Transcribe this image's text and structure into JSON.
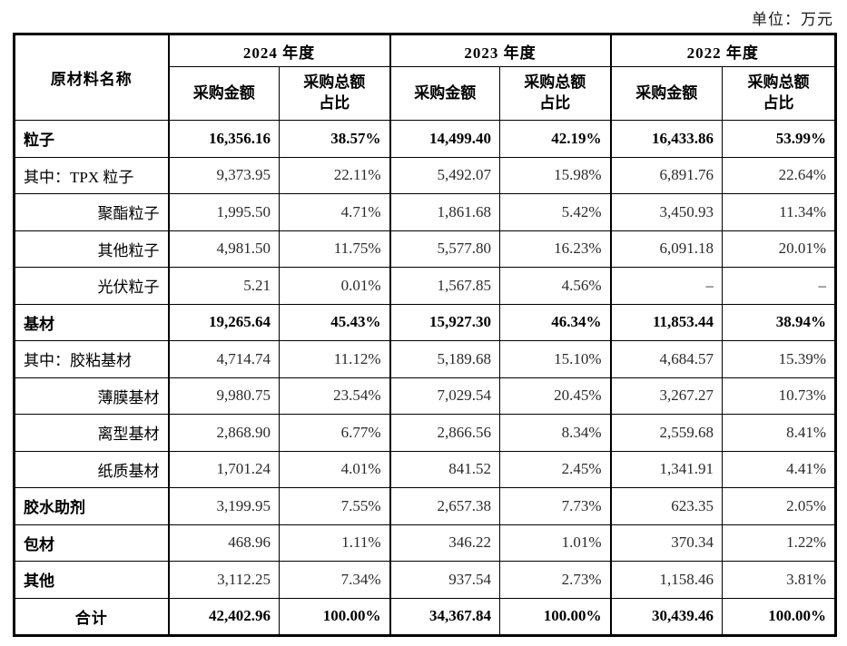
{
  "unit_label": "单位：万元",
  "table": {
    "name_header": "原材料名称",
    "year_groups": [
      {
        "label": "2024 年度"
      },
      {
        "label": "2023 年度"
      },
      {
        "label": "2022 年度"
      }
    ],
    "sub_headers": {
      "amount": "采购金额",
      "ratio": "采购总额\n占比"
    },
    "rows": [
      {
        "name": "粒子",
        "name_style": "left-bold",
        "values_bold": true,
        "values": [
          "16,356.16",
          "38.57%",
          "14,499.40",
          "42.19%",
          "16,433.86",
          "53.99%"
        ]
      },
      {
        "name": "其中：TPX 粒子",
        "name_style": "left",
        "values_bold": false,
        "values": [
          "9,373.95",
          "22.11%",
          "5,492.07",
          "15.98%",
          "6,891.76",
          "22.64%"
        ]
      },
      {
        "name": "聚酯粒子",
        "name_style": "right",
        "values_bold": false,
        "values": [
          "1,995.50",
          "4.71%",
          "1,861.68",
          "5.42%",
          "3,450.93",
          "11.34%"
        ]
      },
      {
        "name": "其他粒子",
        "name_style": "right",
        "values_bold": false,
        "values": [
          "4,981.50",
          "11.75%",
          "5,577.80",
          "16.23%",
          "6,091.18",
          "20.01%"
        ]
      },
      {
        "name": "光伏粒子",
        "name_style": "right",
        "values_bold": false,
        "values": [
          "5.21",
          "0.01%",
          "1,567.85",
          "4.56%",
          "–",
          "–"
        ]
      },
      {
        "name": "基材",
        "name_style": "left-bold",
        "values_bold": true,
        "values": [
          "19,265.64",
          "45.43%",
          "15,927.30",
          "46.34%",
          "11,853.44",
          "38.94%"
        ]
      },
      {
        "name": "其中：胶粘基材",
        "name_style": "left",
        "values_bold": false,
        "values": [
          "4,714.74",
          "11.12%",
          "5,189.68",
          "15.10%",
          "4,684.57",
          "15.39%"
        ]
      },
      {
        "name": "薄膜基材",
        "name_style": "right",
        "values_bold": false,
        "values": [
          "9,980.75",
          "23.54%",
          "7,029.54",
          "20.45%",
          "3,267.27",
          "10.73%"
        ]
      },
      {
        "name": "离型基材",
        "name_style": "right",
        "values_bold": false,
        "values": [
          "2,868.90",
          "6.77%",
          "2,866.56",
          "8.34%",
          "2,559.68",
          "8.41%"
        ]
      },
      {
        "name": "纸质基材",
        "name_style": "right",
        "values_bold": false,
        "values": [
          "1,701.24",
          "4.01%",
          "841.52",
          "2.45%",
          "1,341.91",
          "4.41%"
        ]
      },
      {
        "name": "胶水助剂",
        "name_style": "left-bold",
        "values_bold": false,
        "values": [
          "3,199.95",
          "7.55%",
          "2,657.38",
          "7.73%",
          "623.35",
          "2.05%"
        ]
      },
      {
        "name": "包材",
        "name_style": "left-bold",
        "values_bold": false,
        "values": [
          "468.96",
          "1.11%",
          "346.22",
          "1.01%",
          "370.34",
          "1.22%"
        ]
      },
      {
        "name": "其他",
        "name_style": "left-bold",
        "values_bold": false,
        "values": [
          "3,112.25",
          "7.34%",
          "937.54",
          "2.73%",
          "1,158.46",
          "3.81%"
        ]
      },
      {
        "name": "合计",
        "name_style": "center-bold",
        "values_bold": true,
        "values": [
          "42,402.96",
          "100.00%",
          "34,367.84",
          "100.00%",
          "30,439.46",
          "100.00%"
        ]
      }
    ]
  }
}
